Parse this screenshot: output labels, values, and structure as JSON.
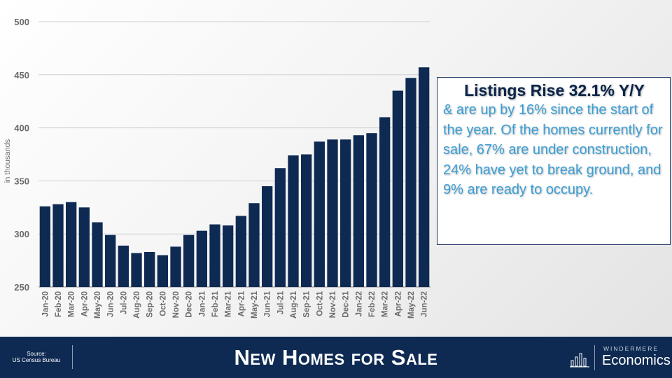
{
  "chart_data": {
    "type": "bar",
    "categories": [
      "Jan-20",
      "Feb-20",
      "Mar-20",
      "Apr-20",
      "May-20",
      "Jun-20",
      "Jul-20",
      "Aug-20",
      "Sep-20",
      "Oct-20",
      "Nov-20",
      "Dec-20",
      "Jan-21",
      "Feb-21",
      "Mar-21",
      "Apr-21",
      "May-21",
      "Jun-21",
      "Jul-21",
      "Aug-21",
      "Sep-21",
      "Oct-21",
      "Nov-21",
      "Dec-21",
      "Jan-22",
      "Feb-22",
      "Mar-22",
      "Apr-22",
      "May-22",
      "Jun-22"
    ],
    "values": [
      326,
      328,
      330,
      325,
      311,
      299,
      289,
      282,
      283,
      280,
      288,
      299,
      303,
      309,
      308,
      317,
      329,
      345,
      362,
      374,
      375,
      387,
      389,
      389,
      393,
      395,
      410,
      435,
      447,
      457
    ],
    "ylim": [
      250,
      500
    ],
    "yticks": [
      250,
      300,
      350,
      400,
      450,
      500
    ],
    "ylabel": "in thousands",
    "grid": true,
    "bar_color": "#0e2a52"
  },
  "callout": {
    "title": "Listings Rise 32.1% Y/Y",
    "body": "& are up by 16% since the start of the year. Of the homes currently for sale, 67% are under construction, 24% have yet to break ground, and 9% are ready to occupy."
  },
  "footer": {
    "source_label": "Source:",
    "source_name": "US Census Bureau",
    "title": "New Homes for Sale",
    "brand_top": "WINDERMERE",
    "brand_bottom": "Economics"
  },
  "colors": {
    "navy": "#0e2a52",
    "callout_blue": "#3a9fd6"
  }
}
